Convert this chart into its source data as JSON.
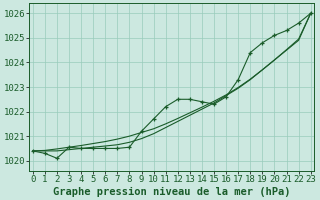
{
  "hours": [
    0,
    1,
    2,
    3,
    4,
    5,
    6,
    7,
    8,
    9,
    10,
    11,
    12,
    13,
    14,
    15,
    16,
    17,
    18,
    19,
    20,
    21,
    22,
    23
  ],
  "pressure": [
    1020.4,
    1020.3,
    1020.1,
    1020.55,
    1020.5,
    1020.5,
    1020.5,
    1020.5,
    1020.55,
    1021.2,
    1021.7,
    1022.2,
    1022.5,
    1022.5,
    1022.4,
    1022.3,
    1022.6,
    1023.3,
    1024.4,
    1024.8,
    1025.1,
    1025.3,
    1025.6,
    1026.0
  ],
  "line1": [
    1020.4,
    1020.4,
    1020.4,
    1020.45,
    1020.5,
    1020.55,
    1020.6,
    1020.65,
    1020.75,
    1020.9,
    1021.1,
    1021.35,
    1021.6,
    1021.85,
    1022.1,
    1022.35,
    1022.65,
    1022.95,
    1023.3,
    1023.7,
    1024.1,
    1024.5,
    1024.9,
    1026.0
  ],
  "line2": [
    1020.4,
    1020.42,
    1020.48,
    1020.55,
    1020.62,
    1020.7,
    1020.78,
    1020.88,
    1021.0,
    1021.15,
    1021.3,
    1021.5,
    1021.72,
    1021.95,
    1022.18,
    1022.42,
    1022.68,
    1022.98,
    1023.32,
    1023.7,
    1024.1,
    1024.52,
    1024.95,
    1026.0
  ],
  "bg_color": "#cce8e0",
  "grid_color": "#99ccbb",
  "line_color": "#1a5c2a",
  "title": "Graphe pression niveau de la mer (hPa)",
  "ylim_min": 1019.6,
  "ylim_max": 1026.4,
  "yticks": [
    1020,
    1021,
    1022,
    1023,
    1024,
    1025,
    1026
  ],
  "xlabel_fontsize": 6.5,
  "ylabel_fontsize": 6.5,
  "title_fontsize": 7.5
}
